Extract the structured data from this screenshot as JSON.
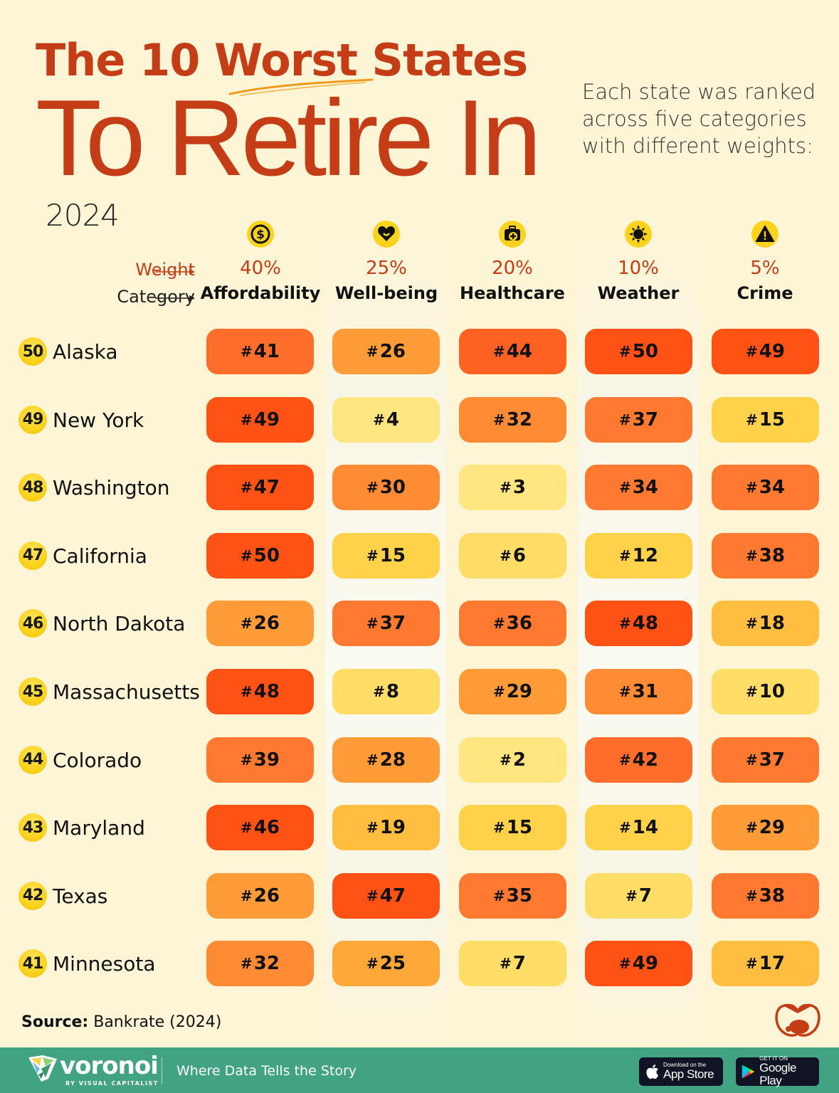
{
  "header": {
    "title_prefix": "The 10 ",
    "title_highlight": "Worst",
    "title_suffix": " States",
    "title_line2": "To Retire In",
    "year": "2024",
    "subtitle": "Each state was ranked across five categories with different weights:"
  },
  "row_labels": {
    "weight": "Weight",
    "category": "Category"
  },
  "categories": [
    {
      "name": "Affordability",
      "weight": "40%",
      "icon": "dollar-coin-icon"
    },
    {
      "name": "Well-being",
      "weight": "25%",
      "icon": "smiling-heart-icon"
    },
    {
      "name": "Healthcare",
      "weight": "20%",
      "icon": "medical-kit-icon"
    },
    {
      "name": "Weather",
      "weight": "10%",
      "icon": "sun-icon"
    },
    {
      "name": "Crime",
      "weight": "5%",
      "icon": "warning-triangle-icon"
    }
  ],
  "states": [
    {
      "rank": "50",
      "name": "Alaska",
      "scores": [
        41,
        26,
        44,
        50,
        49
      ]
    },
    {
      "rank": "49",
      "name": "New York",
      "scores": [
        49,
        4,
        32,
        37,
        15
      ]
    },
    {
      "rank": "48",
      "name": "Washington",
      "scores": [
        47,
        30,
        3,
        34,
        34
      ]
    },
    {
      "rank": "47",
      "name": "California",
      "scores": [
        50,
        15,
        6,
        12,
        38
      ]
    },
    {
      "rank": "46",
      "name": "North Dakota",
      "scores": [
        26,
        37,
        36,
        48,
        18
      ]
    },
    {
      "rank": "45",
      "name": "Massachusetts",
      "scores": [
        48,
        8,
        29,
        31,
        10
      ]
    },
    {
      "rank": "44",
      "name": "Colorado",
      "scores": [
        39,
        28,
        2,
        42,
        37
      ]
    },
    {
      "rank": "43",
      "name": "Maryland",
      "scores": [
        46,
        19,
        15,
        14,
        29
      ]
    },
    {
      "rank": "42",
      "name": "Texas",
      "scores": [
        26,
        47,
        35,
        7,
        38
      ]
    },
    {
      "rank": "41",
      "name": "Minnesota",
      "scores": [
        32,
        25,
        7,
        49,
        17
      ]
    }
  ],
  "colors": {
    "title": "#c53d16",
    "background": "#fdf5d6",
    "badge_yellow": "#fbd21c",
    "footer_green": "#41a381",
    "scale": [
      {
        "max": 5,
        "color": "#ffe680"
      },
      {
        "max": 10,
        "color": "#ffdd66"
      },
      {
        "max": 15,
        "color": "#ffd24a"
      },
      {
        "max": 19,
        "color": "#ffbe3f"
      },
      {
        "max": 25,
        "color": "#ffa83a"
      },
      {
        "max": 29,
        "color": "#ff9c38"
      },
      {
        "max": 33,
        "color": "#ff8b35"
      },
      {
        "max": 39,
        "color": "#ff7a30"
      },
      {
        "max": 42,
        "color": "#ff6d2a"
      },
      {
        "max": 45,
        "color": "#ff6120"
      },
      {
        "max": 50,
        "color": "#ff5214"
      }
    ]
  },
  "source": {
    "label": "Source:",
    "text": "Bankrate (2024)"
  },
  "footer": {
    "brand": "voronoi",
    "by_line": "BY VISUAL CAPITALIST",
    "tagline": "Where Data Tells the Story",
    "app_store_small": "Download on the",
    "app_store_big": "App Store",
    "google_play_small": "GET IT ON",
    "google_play_big": "Google Play"
  },
  "chart_data": {
    "type": "table",
    "title": "The 10 Worst States To Retire In",
    "subtitle": "2024",
    "note": "Each state was ranked across five categories with different weights:",
    "columns": [
      "Affordability",
      "Well-being",
      "Healthcare",
      "Weather",
      "Crime"
    ],
    "weights": [
      "40%",
      "25%",
      "20%",
      "10%",
      "5%"
    ],
    "rows": [
      {
        "overall_rank": 50,
        "state": "Alaska",
        "values": [
          41,
          26,
          44,
          50,
          49
        ]
      },
      {
        "overall_rank": 49,
        "state": "New York",
        "values": [
          49,
          4,
          32,
          37,
          15
        ]
      },
      {
        "overall_rank": 48,
        "state": "Washington",
        "values": [
          47,
          30,
          3,
          34,
          34
        ]
      },
      {
        "overall_rank": 47,
        "state": "California",
        "values": [
          50,
          15,
          6,
          12,
          38
        ]
      },
      {
        "overall_rank": 46,
        "state": "North Dakota",
        "values": [
          26,
          37,
          36,
          48,
          18
        ]
      },
      {
        "overall_rank": 45,
        "state": "Massachusetts",
        "values": [
          48,
          8,
          29,
          31,
          10
        ]
      },
      {
        "overall_rank": 44,
        "state": "Colorado",
        "values": [
          39,
          28,
          2,
          42,
          37
        ]
      },
      {
        "overall_rank": 43,
        "state": "Maryland",
        "values": [
          46,
          19,
          15,
          14,
          29
        ]
      },
      {
        "overall_rank": 42,
        "state": "Texas",
        "values": [
          26,
          47,
          35,
          7,
          38
        ]
      },
      {
        "overall_rank": 41,
        "state": "Minnesota",
        "values": [
          32,
          25,
          7,
          49,
          17
        ]
      }
    ],
    "source": "Bankrate (2024)",
    "color_scale": "yellow (best rank) to red-orange (worst rank)"
  }
}
